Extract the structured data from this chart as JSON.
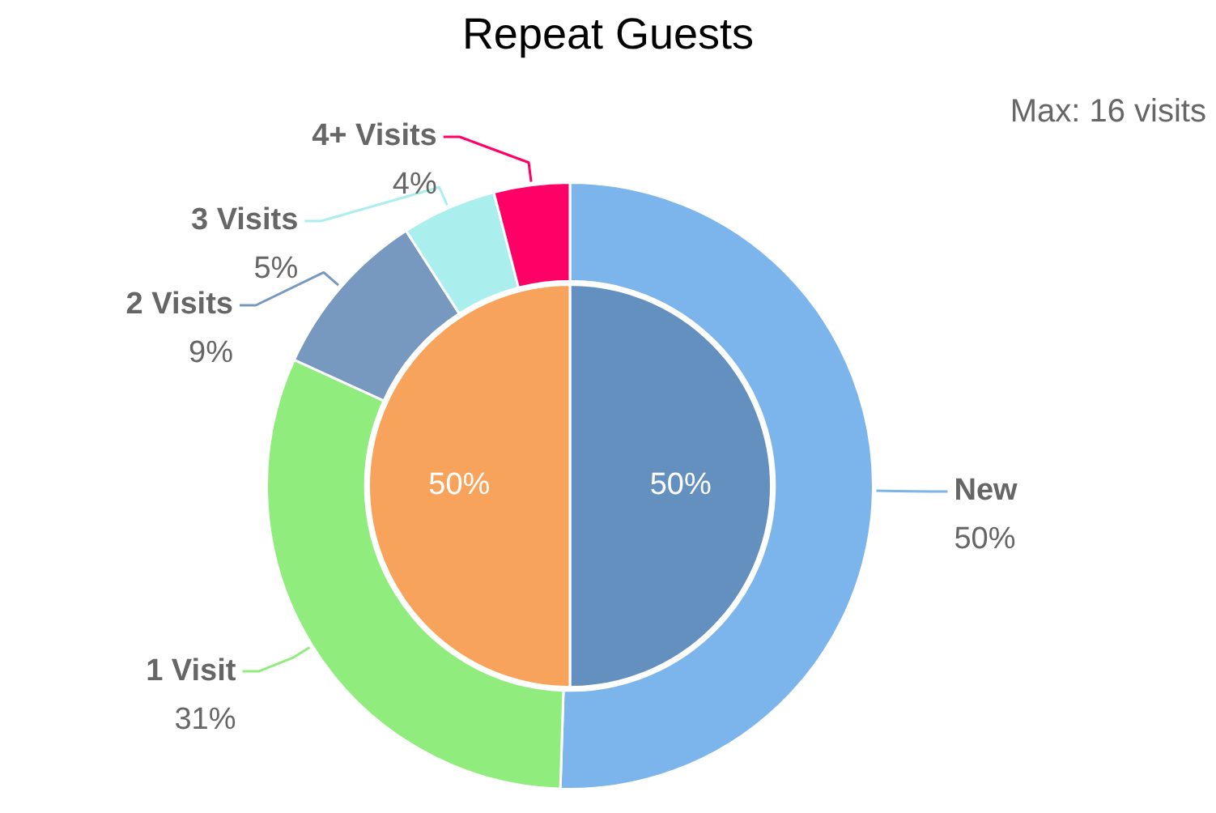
{
  "chart_data": [
    {
      "type": "donut",
      "title": "Repeat Guests",
      "annotations": [
        "Max: 16 visits"
      ],
      "categories": [
        "New",
        "1 Visit",
        "2 Visits",
        "3 Visits",
        "4+ Visits"
      ],
      "values": [
        50,
        31,
        9,
        5,
        4
      ],
      "value_labels": [
        "50%",
        "31%",
        "9%",
        "5%",
        "4%"
      ],
      "colors": [
        "#7cb5ec",
        "#90ed7d",
        "#7798bf",
        "#aaeeee",
        "#ff0066"
      ],
      "legend": false
    },
    {
      "type": "pie",
      "categories": [
        null,
        null
      ],
      "values": [
        50,
        50
      ],
      "value_labels": [
        "50%",
        "50%"
      ],
      "colors": [
        "#6490bf",
        "#f7a35c"
      ],
      "legend": false
    }
  ]
}
